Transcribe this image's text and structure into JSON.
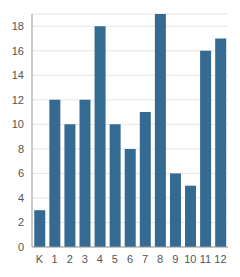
{
  "chart_data": {
    "type": "bar",
    "categories": [
      "K",
      "1",
      "2",
      "3",
      "4",
      "5",
      "6",
      "7",
      "8",
      "9",
      "10",
      "11",
      "12"
    ],
    "values": [
      3,
      12,
      10,
      12,
      18,
      10,
      8,
      11,
      19,
      6,
      5,
      16,
      17
    ],
    "color": "#356a93",
    "ylim": [
      0,
      19
    ],
    "yticks": [
      0,
      2,
      4,
      6,
      8,
      10,
      12,
      14,
      16,
      18
    ],
    "grid": true
  }
}
